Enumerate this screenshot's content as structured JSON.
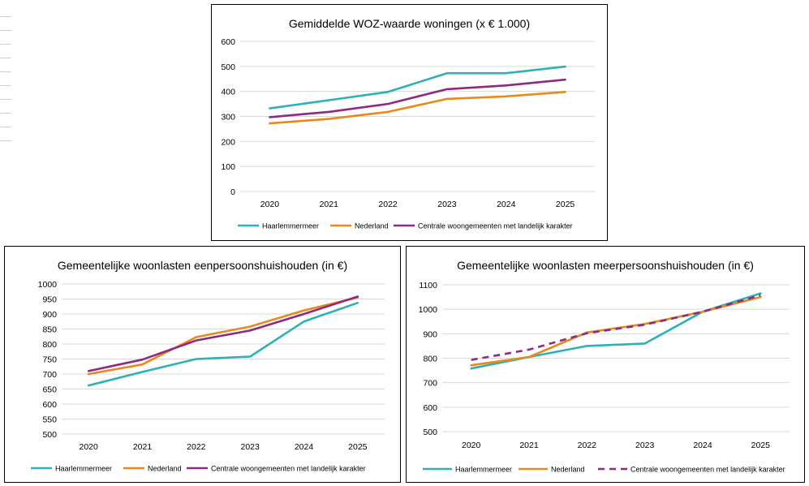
{
  "colors": {
    "teal": "#2db1b6",
    "orange": "#e8891c",
    "purple": "#8e2a82",
    "grid": "#d9d9d9"
  },
  "chart_data": [
    {
      "type": "line",
      "title": "Gemiddelde WOZ-waarde woningen (x € 1.000)",
      "categories": [
        "2020",
        "2021",
        "2022",
        "2023",
        "2024",
        "2025"
      ],
      "y_ticks": [
        "0",
        "100",
        "200",
        "300",
        "400",
        "500",
        "600"
      ],
      "ylim": [
        0,
        600
      ],
      "grid": true,
      "legend_position": "bottom",
      "series": [
        {
          "name": "Haarlemmermeer",
          "color": "#2db1b6",
          "dashed": false,
          "values": [
            332,
            365,
            398,
            473,
            473,
            499
          ]
        },
        {
          "name": "Nederland",
          "color": "#e8891c",
          "dashed": false,
          "values": [
            272,
            290,
            318,
            370,
            380,
            398
          ]
        },
        {
          "name": "Centrale woongemeenten met landelijk karakter",
          "color": "#8e2a82",
          "dashed": false,
          "values": [
            297,
            318,
            350,
            409,
            424,
            447
          ]
        }
      ]
    },
    {
      "type": "line",
      "title": "Gemeentelijke woonlasten eenpersoonshuishouden (in €)",
      "categories": [
        "2020",
        "2021",
        "2022",
        "2023",
        "2024",
        "2025"
      ],
      "y_ticks": [
        "500",
        "550",
        "600",
        "650",
        "700",
        "750",
        "800",
        "850",
        "900",
        "950",
        "1000"
      ],
      "ylim": [
        500,
        1000
      ],
      "grid": true,
      "legend_position": "bottom",
      "series": [
        {
          "name": "Haarlemmermeer",
          "color": "#2db1b6",
          "dashed": false,
          "values": [
            662,
            707,
            750,
            758,
            875,
            937
          ]
        },
        {
          "name": "Nederland",
          "color": "#e8891c",
          "dashed": false,
          "values": [
            700,
            732,
            823,
            858,
            912,
            955
          ]
        },
        {
          "name": "Centrale woongemeenten met landelijk karakter",
          "color": "#8e2a82",
          "dashed": false,
          "values": [
            710,
            748,
            812,
            845,
            900,
            958
          ]
        }
      ]
    },
    {
      "type": "line",
      "title": "Gemeentelijke woonlasten meerpersoonshuishouden (in €)",
      "categories": [
        "2020",
        "2021",
        "2022",
        "2023",
        "2024",
        "2025"
      ],
      "y_ticks": [
        "500",
        "600",
        "700",
        "800",
        "900",
        "1000",
        "1100"
      ],
      "ylim": [
        500,
        1100
      ],
      "grid": true,
      "legend_position": "bottom",
      "series": [
        {
          "name": "Haarlemmermeer",
          "color": "#2db1b6",
          "dashed": false,
          "values": [
            758,
            805,
            850,
            860,
            990,
            1065
          ]
        },
        {
          "name": "Nederland",
          "color": "#e8891c",
          "dashed": false,
          "values": [
            771,
            805,
            905,
            940,
            990,
            1050
          ]
        },
        {
          "name": "Centrale woongemeenten met landelijk karakter",
          "color": "#8e2a82",
          "dashed": true,
          "values": [
            793,
            835,
            902,
            937,
            990,
            1057
          ]
        }
      ]
    }
  ]
}
